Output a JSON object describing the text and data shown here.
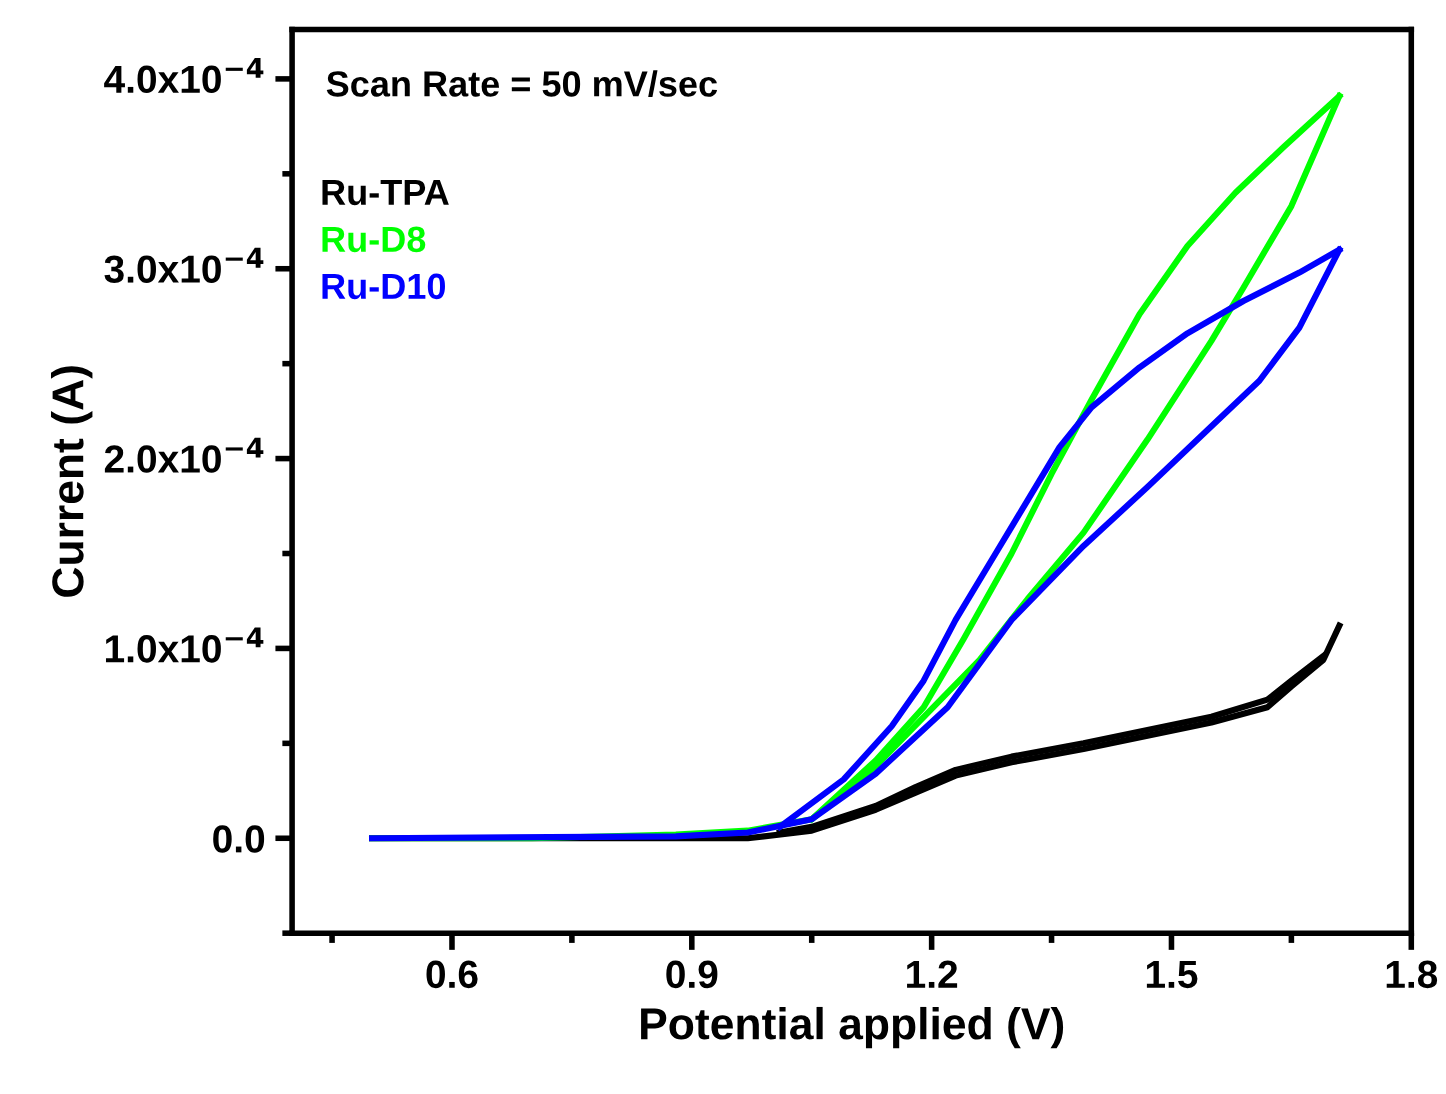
{
  "chart_data": {
    "type": "line",
    "xlabel": "Potential applied (V)",
    "ylabel": "Current (A)",
    "annotations": [
      "Scan Rate = 50 mV/sec"
    ],
    "xlim": [
      0.4,
      1.8
    ],
    "xticks": [
      0.6,
      0.9,
      1.2,
      1.5,
      1.8
    ],
    "ylim": [
      -5e-05,
      0.000426
    ],
    "yticks": [
      {
        "value": 0,
        "label": "0.0"
      },
      {
        "value": 0.0001,
        "label": "1.0x10$^{−4}$"
      },
      {
        "value": 0.0002,
        "label": "2.0x10$^{−4}$"
      },
      {
        "value": 0.0003,
        "label": "3.0x10$^{−4}$"
      },
      {
        "value": 0.0004,
        "label": "4.0x10$^{−4}$"
      }
    ],
    "grid": false,
    "legend": false,
    "marker": "none",
    "line_style": "solid",
    "series": [
      {
        "name": "Ru-TPA",
        "color": "#000000",
        "x": [
          0.5,
          0.88,
          0.97,
          1.05,
          1.13,
          1.18,
          1.23,
          1.3,
          1.39,
          1.47,
          1.55,
          1.62,
          1.65,
          1.69,
          1.71
        ],
        "values": [
          0,
          0,
          0,
          4e-06,
          1.5e-05,
          2.4e-05,
          3.3e-05,
          4e-05,
          4.7e-05,
          5.4e-05,
          6.1e-05,
          6.9e-05,
          8e-05,
          9.4e-05,
          0.000112
        ]
      },
      {
        "color": "#000000",
        "x": [
          1.01,
          1.05,
          1.13,
          1.18,
          1.23,
          1.3,
          1.39,
          1.47,
          1.55,
          1.62,
          1.65,
          1.69
        ],
        "values": [
          3e-06,
          6e-06,
          1.7e-05,
          2.7e-05,
          3.6e-05,
          4.3e-05,
          5e-05,
          5.7e-05,
          6.4e-05,
          7.3e-05,
          8.3e-05,
          9.6e-05
        ]
      },
      {
        "name": "Ru-D8",
        "color": "#00ff00",
        "x": [
          0.5,
          0.7,
          0.88,
          0.97,
          1.05,
          1.13,
          1.26,
          1.32,
          1.39,
          1.47,
          1.55,
          1.59,
          1.65,
          1.71
        ],
        "values": [
          0,
          0,
          2e-06,
          4e-06,
          1e-05,
          3.8e-05,
          9.4e-05,
          0.000126,
          0.000161,
          0.00021,
          0.000262,
          0.00029,
          0.000333,
          0.000391
        ]
      },
      {
        "color": "#00ff00",
        "x": [
          1.05,
          1.13,
          1.19,
          1.24,
          1.3,
          1.35,
          1.4,
          1.46,
          1.52,
          1.58,
          1.64,
          1.71
        ],
        "values": [
          1e-05,
          4.1e-05,
          6.9e-05,
          0.000105,
          0.00015,
          0.000192,
          0.000231,
          0.000276,
          0.000312,
          0.00034,
          0.000364,
          0.000391
        ]
      },
      {
        "name": "Ru-D10",
        "color": "#0000ff",
        "x": [
          0.5,
          0.88,
          0.97,
          1.05,
          1.13,
          1.22,
          1.3,
          1.39,
          1.47,
          1.55,
          1.61,
          1.66,
          1.71
        ],
        "values": [
          0,
          1e-06,
          3e-06,
          1e-05,
          3.4e-05,
          6.9e-05,
          0.000115,
          0.000154,
          0.000185,
          0.000217,
          0.000241,
          0.000269,
          0.00031
        ]
      },
      {
        "color": "#0000ff",
        "x": [
          1.01,
          1.09,
          1.15,
          1.19,
          1.23,
          1.28,
          1.32,
          1.36,
          1.4,
          1.46,
          1.52,
          1.59,
          1.66,
          1.71
        ],
        "values": [
          6e-06,
          3.1e-05,
          5.9e-05,
          8.3e-05,
          0.000115,
          0.00015,
          0.000178,
          0.000206,
          0.000227,
          0.000248,
          0.000266,
          0.000283,
          0.000298,
          0.00031
        ]
      }
    ]
  }
}
